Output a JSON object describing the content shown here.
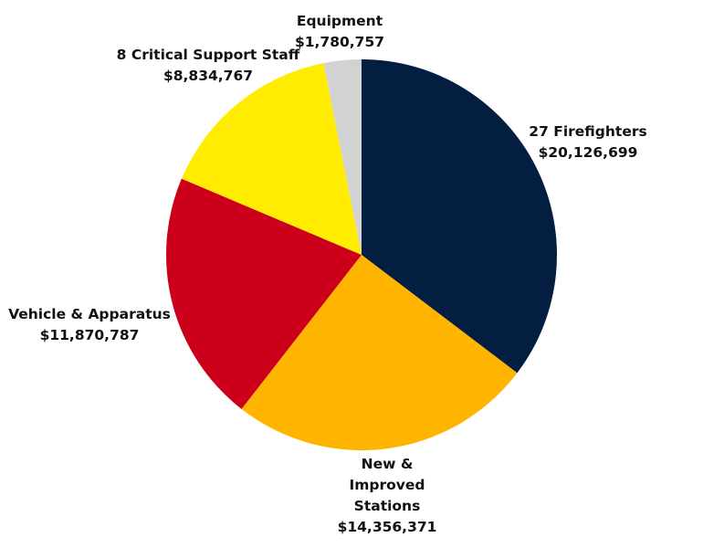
{
  "chart_data": {
    "type": "pie",
    "start_angle_deg": 0,
    "direction": "clockwise",
    "slices": [
      {
        "label_lines": [
          "27 Firefighters"
        ],
        "value_text": "$20,126,699",
        "value": 20126699,
        "color": "#041e42"
      },
      {
        "label_lines": [
          "New &",
          "Improved",
          "Stations"
        ],
        "value_text": "$14,356,371",
        "value": 14356371,
        "color": "#ffb500"
      },
      {
        "label_lines": [
          "Vehicle & Apparatus"
        ],
        "value_text": "$11,870,787",
        "value": 11870787,
        "color": "#cc001a"
      },
      {
        "label_lines": [
          "8 Critical Support Staff"
        ],
        "value_text": "$8,834,767",
        "value": 8834767,
        "color": "#ffec00"
      },
      {
        "label_lines": [
          "Equipment"
        ],
        "value_text": "$1,780,757",
        "value": 1780757,
        "color": "#d2d2d2"
      }
    ]
  }
}
